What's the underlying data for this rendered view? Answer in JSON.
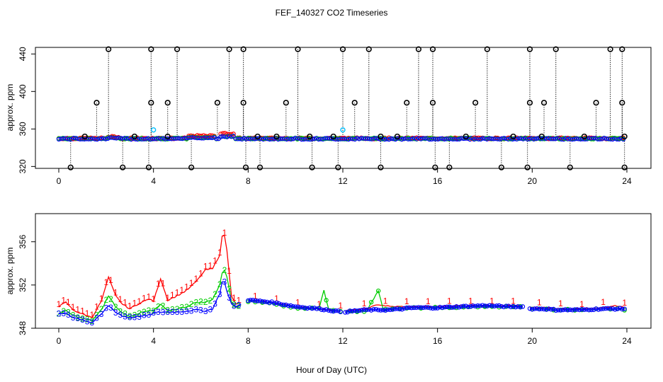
{
  "title": "FEF_140327  CO2 Timeseries",
  "xlabel": "Hour of Day (UTC)",
  "colors": {
    "series1": "#ff0000",
    "series2": "#00cc00",
    "series3": "#0000ff",
    "outlier": "#000000",
    "flag": "#00bfff"
  },
  "chart_data": [
    {
      "type": "scatter",
      "panel": "top",
      "ylabel": "approx. ppm",
      "xlim": [
        0,
        24
      ],
      "ylim": [
        318,
        447
      ],
      "x_ticks": [
        "0",
        "4",
        "8",
        "12",
        "16",
        "20",
        "24"
      ],
      "y_ticks": [
        "320",
        "360",
        "400",
        "440"
      ],
      "baseline_ppm": 350,
      "outliers_high": [
        2.1,
        3.9,
        5.0,
        7.2,
        7.8,
        10.1,
        12.0,
        13.1,
        15.2,
        15.8,
        18.1,
        19.9,
        21.0,
        23.3,
        23.8
      ],
      "outliers_mid": [
        1.6,
        3.9,
        4.6,
        6.7,
        7.8,
        9.6,
        12.5,
        14.7,
        15.8,
        17.6,
        19.9,
        20.5,
        22.7,
        23.8
      ],
      "outliers_low": [
        0.5,
        2.7,
        3.8,
        5.6,
        7.9,
        8.5,
        10.7,
        11.8,
        13.6,
        15.9,
        16.5,
        18.7,
        19.8,
        21.6,
        23.9
      ],
      "small_markers": [
        1.1,
        3.2,
        4.6,
        8.4,
        9.2,
        10.6,
        11.6,
        13.6,
        14.3,
        17.2,
        19.2,
        20.4,
        22.2,
        23.9
      ],
      "flag_points": [
        {
          "x": 4.0,
          "y": 359
        },
        {
          "x": 12.0,
          "y": 359
        }
      ]
    },
    {
      "type": "line",
      "panel": "bottom",
      "ylabel": "approx. ppm",
      "xlim": [
        0,
        24
      ],
      "ylim": [
        348,
        358.6
      ],
      "x_ticks": [
        "0",
        "4",
        "8",
        "12",
        "16",
        "20",
        "24"
      ],
      "y_ticks": [
        "348",
        "352",
        "356"
      ],
      "series": [
        {
          "name": "1",
          "color": "#ff0000",
          "x": [
            0.0,
            0.3,
            0.6,
            1.0,
            1.4,
            1.8,
            2.1,
            2.4,
            2.7,
            3.0,
            3.4,
            3.8,
            4.0,
            4.3,
            4.6,
            5.0,
            5.4,
            5.8,
            6.2,
            6.5,
            6.8,
            6.95,
            7.1,
            7.3,
            7.5,
            8.0,
            9.0,
            10.0,
            11.0,
            12.0,
            13.0,
            13.5,
            14.0,
            15.0,
            16.0,
            17.0,
            18.0,
            19.0,
            19.6,
            19.9,
            20.5,
            21.0,
            22.0,
            23.0,
            23.5,
            23.9
          ],
          "y": [
            350.0,
            350.4,
            349.7,
            349.3,
            349.0,
            350.5,
            352.7,
            351.0,
            350.2,
            349.8,
            350.3,
            350.7,
            350.5,
            352.6,
            350.6,
            351.0,
            351.5,
            352.3,
            353.4,
            353.5,
            354.8,
            357.3,
            355.2,
            351.0,
            350.2,
            350.6,
            350.4,
            350.0,
            349.8,
            349.6,
            349.8,
            350.2,
            350.0,
            350.0,
            350.0,
            350.1,
            350.1,
            350.1,
            350.0,
            349.9,
            349.9,
            349.8,
            349.8,
            349.9,
            350.1,
            349.9
          ]
        },
        {
          "name": "2",
          "color": "#00cc00",
          "x": [
            0.0,
            0.3,
            0.6,
            1.0,
            1.4,
            1.8,
            2.1,
            2.4,
            2.7,
            3.0,
            3.4,
            3.8,
            4.0,
            4.3,
            4.6,
            5.0,
            5.4,
            5.8,
            6.2,
            6.5,
            6.8,
            6.95,
            7.1,
            7.3,
            7.5,
            8.0,
            9.0,
            10.0,
            11.0,
            11.2,
            11.4,
            12.0,
            13.0,
            13.5,
            13.7,
            14.0,
            15.0,
            16.0,
            17.0,
            18.0,
            19.0,
            19.6,
            19.9,
            20.5,
            21.0,
            22.0,
            23.0,
            23.5,
            23.9
          ],
          "y": [
            349.4,
            349.6,
            349.2,
            348.9,
            348.7,
            349.7,
            351.0,
            350.0,
            349.4,
            349.1,
            349.4,
            349.6,
            349.6,
            350.2,
            349.6,
            349.8,
            350.0,
            350.4,
            350.4,
            350.7,
            352.0,
            353.7,
            352.8,
            350.4,
            350.0,
            350.5,
            350.3,
            349.9,
            349.8,
            351.5,
            349.8,
            349.5,
            349.6,
            351.5,
            349.8,
            349.8,
            349.9,
            349.9,
            349.9,
            350.0,
            350.0,
            350.0,
            349.8,
            349.8,
            349.7,
            349.7,
            349.8,
            349.8,
            349.7
          ]
        },
        {
          "name": "3",
          "color": "#0000ff",
          "x": [
            0.0,
            0.3,
            0.6,
            1.0,
            1.4,
            1.8,
            2.1,
            2.4,
            2.7,
            3.0,
            3.4,
            3.8,
            4.0,
            4.3,
            4.6,
            5.0,
            5.4,
            5.8,
            6.2,
            6.5,
            6.8,
            6.95,
            7.1,
            7.3,
            7.5,
            8.0,
            9.0,
            10.0,
            11.0,
            12.0,
            13.0,
            14.0,
            15.0,
            16.0,
            17.0,
            18.0,
            19.0,
            19.6,
            19.9,
            20.5,
            21.0,
            22.0,
            23.0,
            23.5,
            23.9
          ],
          "y": [
            349.3,
            349.4,
            349.0,
            348.8,
            348.5,
            349.3,
            350.1,
            349.5,
            349.1,
            349.0,
            349.1,
            349.2,
            349.4,
            349.5,
            349.5,
            349.5,
            349.6,
            349.7,
            349.6,
            349.8,
            351.2,
            352.8,
            351.4,
            350.2,
            350.0,
            350.6,
            350.4,
            350.0,
            349.8,
            349.5,
            349.7,
            349.7,
            349.9,
            349.9,
            350.0,
            350.1,
            350.0,
            350.0,
            349.8,
            349.8,
            349.7,
            349.7,
            349.8,
            349.8,
            349.8
          ]
        }
      ]
    }
  ]
}
